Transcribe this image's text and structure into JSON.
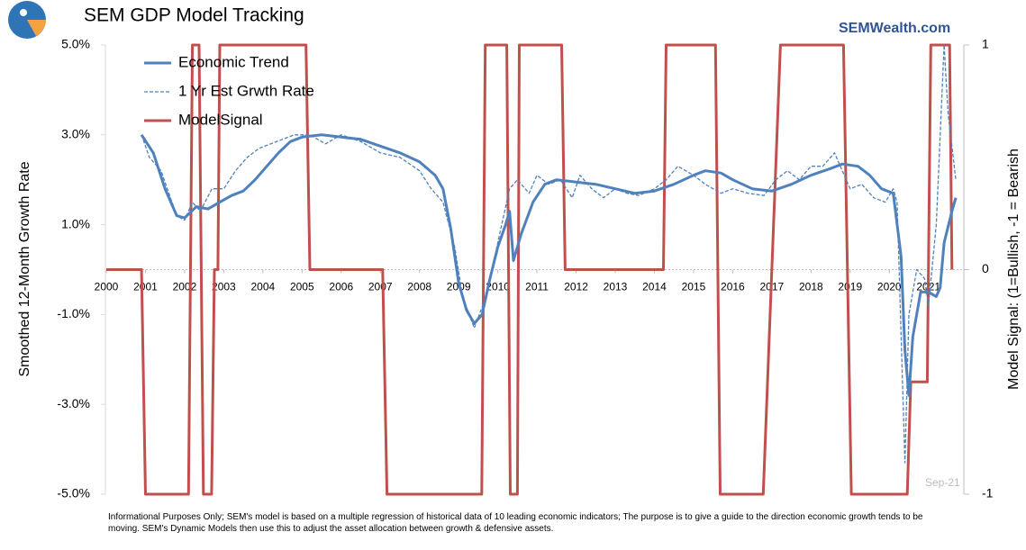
{
  "chart_data": {
    "type": "line",
    "title": "SEM GDP Model Tracking",
    "source": "SEMWealth.com",
    "annotation": "Sep-21",
    "footnote": "Informational Purposes Only; SEM's model is based on a multiple regression of historical data of 10 leading economic indicators; The purpose is to give a guide to the direction economic growth tends to be moving. SEM's Dynamic Models then use this to adjust the asset allocation between growth & defensive assets.",
    "y_label": "Smoothed 12-Month Growth Rate",
    "y2_label": "Model Signal: (1=Bullish, -1 = Bearish",
    "xlim": [
      2000,
      2021.72
    ],
    "xticks": [
      2000,
      2001,
      2002,
      2003,
      2004,
      2005,
      2006,
      2007,
      2008,
      2009,
      2010,
      2011,
      2012,
      2013,
      2014,
      2015,
      2016,
      2017,
      2018,
      2019,
      2020,
      2021
    ],
    "ylim": [
      -5,
      5
    ],
    "yticks": [
      {
        "value": -5,
        "label": "-5.0%"
      },
      {
        "value": -3,
        "label": "-3.0%"
      },
      {
        "value": -1,
        "label": "-1.0%"
      },
      {
        "value": 1,
        "label": "1.0%"
      },
      {
        "value": 3,
        "label": "3.0%"
      },
      {
        "value": 5,
        "label": "5.0%"
      }
    ],
    "y2lim": [
      -1,
      1
    ],
    "y2ticks": [
      -1,
      0,
      1
    ],
    "legend": "upper left",
    "series": [
      {
        "name": "Economic Trend",
        "color": "#4f81bd",
        "style": "solid",
        "x": [
          2000.9,
          2001.2,
          2001.5,
          2001.8,
          2002.0,
          2002.3,
          2002.6,
          2002.9,
          2003.2,
          2003.5,
          2003.8,
          2004.1,
          2004.4,
          2004.7,
          2005.0,
          2005.5,
          2006.0,
          2006.5,
          2007.0,
          2007.5,
          2008.0,
          2008.4,
          2008.6,
          2008.8,
          2009.0,
          2009.2,
          2009.4,
          2009.6,
          2009.8,
          2010.0,
          2010.2,
          2010.3,
          2010.4,
          2010.6,
          2010.9,
          2011.2,
          2011.5,
          2012.0,
          2012.5,
          2013.0,
          2013.5,
          2014.0,
          2014.5,
          2015.0,
          2015.3,
          2015.7,
          2016.0,
          2016.5,
          2017.0,
          2017.5,
          2018.0,
          2018.5,
          2018.8,
          2019.2,
          2019.5,
          2019.8,
          2020.1,
          2020.3,
          2020.4,
          2020.5,
          2020.6,
          2020.8,
          2021.0,
          2021.2,
          2021.3,
          2021.4,
          2021.6,
          2021.7
        ],
        "values": [
          3.0,
          2.6,
          1.8,
          1.2,
          1.15,
          1.4,
          1.35,
          1.5,
          1.65,
          1.75,
          2.0,
          2.3,
          2.6,
          2.85,
          2.95,
          3.0,
          2.95,
          2.9,
          2.75,
          2.6,
          2.4,
          2.1,
          1.8,
          0.9,
          -0.3,
          -0.9,
          -1.2,
          -1.0,
          -0.2,
          0.5,
          1.0,
          1.3,
          0.2,
          0.8,
          1.5,
          1.9,
          2.0,
          1.95,
          1.9,
          1.8,
          1.7,
          1.75,
          1.9,
          2.1,
          2.2,
          2.15,
          2.0,
          1.8,
          1.75,
          1.9,
          2.1,
          2.25,
          2.35,
          2.3,
          2.1,
          1.8,
          1.7,
          0.3,
          -1.8,
          -2.8,
          -1.5,
          -0.5,
          -0.5,
          -0.6,
          -0.4,
          0.6,
          1.3,
          1.6
        ]
      },
      {
        "name": "1 Yr Est Grwth Rate",
        "color": "#4f81bd",
        "style": "dashed",
        "x": [
          2000.9,
          2001.1,
          2001.4,
          2001.6,
          2001.8,
          2002.0,
          2002.2,
          2002.4,
          2002.7,
          2003.0,
          2003.3,
          2003.6,
          2003.9,
          2004.2,
          2004.5,
          2004.8,
          2005.2,
          2005.6,
          2006.0,
          2006.5,
          2007.0,
          2007.5,
          2008.0,
          2008.3,
          2008.6,
          2008.9,
          2009.1,
          2009.4,
          2009.7,
          2010.0,
          2010.3,
          2010.5,
          2010.8,
          2011.0,
          2011.3,
          2011.6,
          2011.9,
          2012.1,
          2012.4,
          2012.7,
          2013.0,
          2013.3,
          2013.6,
          2014.0,
          2014.3,
          2014.6,
          2015.0,
          2015.3,
          2015.7,
          2016.0,
          2016.4,
          2016.8,
          2017.1,
          2017.4,
          2017.7,
          2018.0,
          2018.3,
          2018.6,
          2019.0,
          2019.3,
          2019.6,
          2019.9,
          2020.1,
          2020.2,
          2020.4,
          2020.5,
          2020.7,
          2020.9,
          2021.0,
          2021.2,
          2021.4,
          2021.5,
          2021.7
        ],
        "values": [
          3.0,
          2.5,
          2.2,
          1.7,
          1.2,
          1.1,
          1.5,
          1.3,
          1.8,
          1.8,
          2.2,
          2.5,
          2.7,
          2.8,
          2.9,
          3.0,
          3.0,
          2.8,
          3.0,
          2.85,
          2.6,
          2.5,
          2.2,
          1.8,
          1.5,
          0.5,
          -0.6,
          -1.3,
          -0.6,
          0.6,
          1.8,
          2.0,
          1.7,
          2.1,
          1.9,
          2.0,
          1.6,
          2.1,
          1.8,
          1.6,
          1.8,
          1.7,
          1.65,
          1.8,
          2.0,
          2.3,
          2.1,
          1.9,
          1.7,
          1.8,
          1.7,
          1.65,
          2.0,
          2.2,
          2.0,
          2.3,
          2.3,
          2.6,
          1.8,
          1.9,
          1.6,
          1.5,
          1.8,
          1.5,
          -4.3,
          -1.0,
          0.0,
          -0.2,
          -0.8,
          1.0,
          5.0,
          3.5,
          2.0
        ]
      },
      {
        "name": "ModelSignal",
        "color": "#c0504d",
        "style": "solid",
        "axis": "y2",
        "x": [
          2000.0,
          2000.9,
          2001.0,
          2002.1,
          2002.2,
          2002.37,
          2002.48,
          2002.69,
          2002.76,
          2002.85,
          2002.9,
          2005.1,
          2005.2,
          2007.06,
          2007.17,
          2009.59,
          2009.68,
          2010.23,
          2010.32,
          2010.5,
          2010.55,
          2011.63,
          2011.72,
          2014.23,
          2014.3,
          2015.56,
          2015.68,
          2016.78,
          2017.22,
          2018.83,
          2019.03,
          2020.46,
          2020.55,
          2020.97,
          2021.06,
          2021.54,
          2021.6
        ],
        "values": [
          0,
          0,
          -1,
          -1,
          1,
          1,
          -1,
          -1,
          0,
          0,
          1,
          1,
          0,
          0,
          -1,
          -1,
          1,
          1,
          -1,
          -1,
          1,
          1,
          0,
          0,
          1,
          1,
          -1,
          -1,
          1,
          1,
          -1,
          -1,
          -0.5,
          -0.5,
          1,
          1,
          0
        ]
      }
    ]
  }
}
